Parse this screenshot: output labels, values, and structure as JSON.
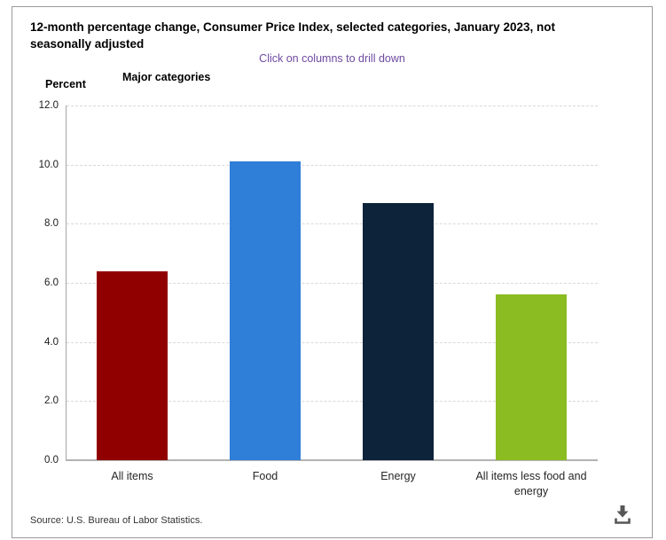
{
  "window": {
    "background": "#ffffff",
    "border_color": "#9a9a9a"
  },
  "header": {
    "title": "12-month percentage change, Consumer Price Index, selected categories, January 2023, not seasonally adjusted",
    "subtitle": "Click on columns to drill down"
  },
  "axes": {
    "y_title": "Percent",
    "x_title": "Major categories"
  },
  "chart_data": {
    "type": "bar",
    "title": "12-month percentage change, Consumer Price Index, selected categories, January 2023, not seasonally adjusted",
    "subtitle": "Click on columns to drill down",
    "categories": [
      "All items",
      "Food",
      "Energy",
      "All items less food and energy"
    ],
    "values": [
      6.4,
      10.1,
      8.7,
      5.6
    ],
    "bar_colors": [
      "#910000",
      "#2f7ed8",
      "#0d233a",
      "#8bbc21"
    ],
    "xlabel": "Major categories",
    "ylabel": "Percent",
    "ylim": [
      0,
      12
    ],
    "yticks": [
      0,
      2,
      4,
      6,
      8,
      10,
      12
    ],
    "ytick_labels": [
      "0.0",
      "2.0",
      "4.0",
      "6.0",
      "8.0",
      "10.0",
      "12.0"
    ],
    "grid": "horizontal-dashed",
    "legend": "none"
  },
  "colors": {
    "subtitle_text": "#6e4aa0",
    "grid_line": "#d8d8d8",
    "axis_line": "#b3b3b3",
    "tick_text": "#1a1a1a",
    "category_text": "#262626",
    "download_icon": "#575757"
  },
  "icons": {
    "download": "download-icon"
  },
  "footer": {
    "source": "Source: U.S. Bureau of Labor Statistics."
  }
}
